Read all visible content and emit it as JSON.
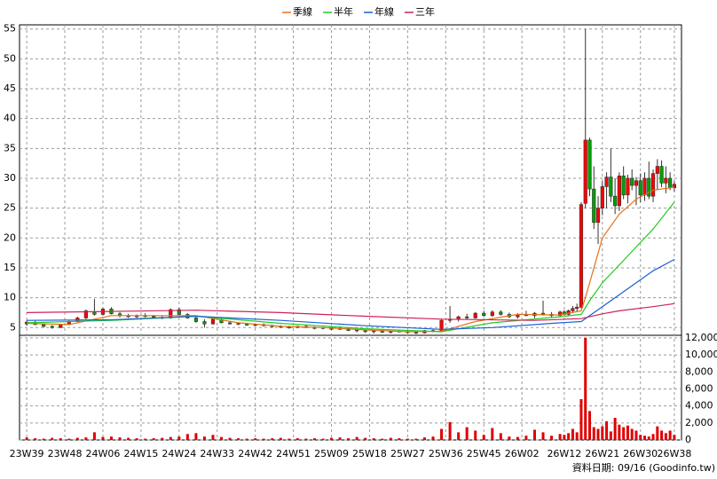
{
  "chart_data": [
    {
      "type": "candlestick",
      "xlim": [
        -1.7,
        154.7
      ],
      "ylim": [
        3.7,
        55.7
      ],
      "yticks": [
        5,
        10,
        15,
        20,
        25,
        30,
        35,
        40,
        45,
        50,
        55
      ],
      "grid": true,
      "up_color": "#ff0000",
      "down_color": "#00a000",
      "x": [
        0,
        2,
        4,
        6,
        8,
        10,
        12,
        14,
        16,
        18,
        20,
        22,
        24,
        26,
        28,
        30,
        32,
        34,
        36,
        38,
        40,
        42,
        44,
        46,
        48,
        50,
        52,
        54,
        56,
        58,
        60,
        62,
        64,
        66,
        68,
        70,
        72,
        74,
        76,
        78,
        80,
        82,
        84,
        86,
        88,
        90,
        92,
        94,
        96,
        98,
        100,
        102,
        104,
        106,
        108,
        110,
        112,
        114,
        116,
        118,
        120,
        122,
        124,
        126,
        127,
        128,
        129,
        130,
        131,
        132,
        133,
        134,
        135,
        136,
        137,
        138,
        139,
        140,
        141,
        142,
        143,
        144,
        145,
        146,
        147,
        148,
        149,
        150,
        151,
        152,
        153
      ],
      "open": [
        5.6,
        5.9,
        5.5,
        5.2,
        5.0,
        5.5,
        6.0,
        6.6,
        7.6,
        7.2,
        8.1,
        7.3,
        7.0,
        6.8,
        7.0,
        6.9,
        6.7,
        6.6,
        8.0,
        7.2,
        6.6,
        6.0,
        5.6,
        6.3,
        5.8,
        5.6,
        5.7,
        5.4,
        5.5,
        5.3,
        5.2,
        5.1,
        5.0,
        5.2,
        5.0,
        4.9,
        5.0,
        4.7,
        4.9,
        4.5,
        4.6,
        4.3,
        4.5,
        4.2,
        4.4,
        4.3,
        4.2,
        4.1,
        4.5,
        4.4,
        6.2,
        6.4,
        6.8,
        6.6,
        7.4,
        7.0,
        7.6,
        7.2,
        6.8,
        7.2,
        7.0,
        7.4,
        7.2,
        7.0,
        7.6,
        7.2,
        7.8,
        8.2,
        8.4,
        25.8,
        36.4,
        28.2,
        22.6,
        25.0,
        28.6,
        30.2,
        27.0,
        25.4,
        30.4,
        27.2,
        30.0,
        28.8,
        29.6,
        27.2,
        30.0,
        27.0,
        30.8,
        32.0,
        29.2,
        30.0,
        28.4
      ],
      "high": [
        6.2,
        6.1,
        5.7,
        5.4,
        5.6,
        6.2,
        6.8,
        8.0,
        9.8,
        8.3,
        8.4,
        7.6,
        7.3,
        7.2,
        7.4,
        7.1,
        7.0,
        8.2,
        8.3,
        7.4,
        6.8,
        6.4,
        6.6,
        6.5,
        6.0,
        5.9,
        5.8,
        5.6,
        5.7,
        5.5,
        5.4,
        5.3,
        5.3,
        5.4,
        5.2,
        5.1,
        5.2,
        5.0,
        5.0,
        4.8,
        4.7,
        4.6,
        4.6,
        4.5,
        4.6,
        4.5,
        4.4,
        4.6,
        4.8,
        6.5,
        8.6,
        7.0,
        7.3,
        7.6,
        7.8,
        7.9,
        7.9,
        7.5,
        7.4,
        7.8,
        7.6,
        9.5,
        7.6,
        7.8,
        7.9,
        8.0,
        8.6,
        9.0,
        26.0,
        55.0,
        36.8,
        32.0,
        27.0,
        29.5,
        31.0,
        35.0,
        30.0,
        31.0,
        32.0,
        30.6,
        31.5,
        30.2,
        30.8,
        31.0,
        32.8,
        31.5,
        33.2,
        33.0,
        32.0,
        31.0,
        29.5
      ],
      "low": [
        5.3,
        5.4,
        5.0,
        4.8,
        4.9,
        5.4,
        5.9,
        6.4,
        7.0,
        7.0,
        7.2,
        6.7,
        6.6,
        6.6,
        6.7,
        6.5,
        6.4,
        6.5,
        7.0,
        6.5,
        5.8,
        5.0,
        5.5,
        5.7,
        5.5,
        5.4,
        5.3,
        5.2,
        5.2,
        5.0,
        4.9,
        4.8,
        4.9,
        4.9,
        4.7,
        4.7,
        4.6,
        4.6,
        4.4,
        4.2,
        4.1,
        4.0,
        4.1,
        4.0,
        4.2,
        4.0,
        3.9,
        4.0,
        4.2,
        4.3,
        5.8,
        6.0,
        6.3,
        6.5,
        6.8,
        6.8,
        7.0,
        6.6,
        6.5,
        6.9,
        6.6,
        7.0,
        6.6,
        6.8,
        7.0,
        7.0,
        7.4,
        7.6,
        8.2,
        25.0,
        27.0,
        21.5,
        19.0,
        23.8,
        25.0,
        26.0,
        24.0,
        24.5,
        26.5,
        25.8,
        28.0,
        25.5,
        26.0,
        26.2,
        26.5,
        26.0,
        28.0,
        28.5,
        27.5,
        28.0,
        27.8
      ],
      "close": [
        5.9,
        5.5,
        5.2,
        5.0,
        5.5,
        6.0,
        6.6,
        7.8,
        7.2,
        8.1,
        7.3,
        7.0,
        6.8,
        7.0,
        6.9,
        6.7,
        6.6,
        8.0,
        7.2,
        6.6,
        6.0,
        5.6,
        6.4,
        5.8,
        5.6,
        5.7,
        5.4,
        5.5,
        5.3,
        5.2,
        5.1,
        5.0,
        5.2,
        5.0,
        4.9,
        5.0,
        4.7,
        4.9,
        4.5,
        4.6,
        4.3,
        4.5,
        4.2,
        4.4,
        4.3,
        4.2,
        4.1,
        4.5,
        4.4,
        6.2,
        6.4,
        6.8,
        6.6,
        7.4,
        7.0,
        7.6,
        7.2,
        6.8,
        7.2,
        7.0,
        7.4,
        7.2,
        7.0,
        7.6,
        7.2,
        7.8,
        8.2,
        8.4,
        25.6,
        36.4,
        28.2,
        22.6,
        25.0,
        28.6,
        30.2,
        27.0,
        25.4,
        30.4,
        27.2,
        30.0,
        28.8,
        29.6,
        27.2,
        30.0,
        27.0,
        30.8,
        32.0,
        29.2,
        30.0,
        28.4,
        29.0
      ],
      "series": [
        {
          "name": "季線",
          "color": "#e8701a",
          "x": [
            0,
            10,
            20,
            30,
            40,
            50,
            60,
            70,
            80,
            90,
            98,
            106,
            116,
            126,
            131,
            132,
            134,
            136,
            140,
            144,
            148,
            153
          ],
          "values": [
            5.7,
            5.5,
            7.0,
            7.0,
            7.0,
            5.8,
            5.2,
            5.0,
            4.6,
            4.3,
            4.4,
            6.0,
            7.2,
            7.1,
            7.8,
            10,
            15,
            20,
            24,
            26.5,
            28,
            28.5
          ]
        },
        {
          "name": "半年",
          "color": "#22cc22",
          "x": [
            0,
            20,
            40,
            60,
            80,
            98,
            110,
            126,
            131,
            133,
            136,
            140,
            144,
            148,
            153
          ],
          "values": [
            5.8,
            6.2,
            6.9,
            5.7,
            4.8,
            4.3,
            5.8,
            6.8,
            7.2,
            9.5,
            12.5,
            15.5,
            18.5,
            21.5,
            26.0
          ]
        },
        {
          "name": "年線",
          "color": "#1a5fd6",
          "x": [
            0,
            20,
            40,
            60,
            80,
            98,
            110,
            126,
            131,
            136,
            140,
            144,
            148,
            153
          ],
          "values": [
            6.2,
            6.3,
            6.9,
            6.2,
            5.3,
            4.7,
            5.0,
            5.8,
            6.0,
            8.5,
            10.5,
            12.5,
            14.5,
            16.4
          ]
        },
        {
          "name": "三年",
          "color": "#d0205a",
          "x": [
            0,
            20,
            40,
            60,
            80,
            98,
            120,
            131,
            136,
            140,
            148,
            153
          ],
          "values": [
            7.5,
            7.7,
            7.9,
            7.5,
            6.9,
            6.4,
            6.2,
            6.5,
            7.3,
            7.8,
            8.5,
            9.0
          ]
        }
      ]
    },
    {
      "type": "bar",
      "color": "#e00000",
      "xlim": [
        -1.7,
        154.7
      ],
      "ylim": [
        0,
        12300
      ],
      "yticks": [
        0,
        {
          "value": 2000,
          "label": "2,000"
        },
        {
          "value": 4000,
          "label": "4,000"
        },
        {
          "value": 6000,
          "label": "6,000"
        },
        {
          "value": 8000,
          "label": "8,000"
        },
        {
          "value": 10000,
          "label": "10,000"
        },
        {
          "value": 12000,
          "label": "12,000"
        }
      ],
      "xticks": [
        {
          "value": 0,
          "label": "23W39"
        },
        {
          "value": 9,
          "label": "23W48"
        },
        {
          "value": 18,
          "label": "24W06"
        },
        {
          "value": 27,
          "label": "24W15"
        },
        {
          "value": 36,
          "label": "24W24"
        },
        {
          "value": 45,
          "label": "24W33"
        },
        {
          "value": 54,
          "label": "24W42"
        },
        {
          "value": 63,
          "label": "24W51"
        },
        {
          "value": 72,
          "label": "25W09"
        },
        {
          "value": 81,
          "label": "25W18"
        },
        {
          "value": 90,
          "label": "25W27"
        },
        {
          "value": 99,
          "label": "25W36"
        },
        {
          "value": 108,
          "label": "25W45"
        },
        {
          "value": 117,
          "label": "26W02"
        },
        {
          "value": 127,
          "label": "26W12"
        },
        {
          "value": 136,
          "label": "26W21"
        },
        {
          "value": 145,
          "label": "26W30"
        },
        {
          "value": 153,
          "label": "26W38"
        }
      ],
      "grid": true,
      "x": [
        0,
        2,
        4,
        6,
        8,
        10,
        12,
        14,
        16,
        18,
        20,
        22,
        24,
        26,
        28,
        30,
        32,
        34,
        36,
        38,
        40,
        42,
        44,
        46,
        48,
        50,
        52,
        54,
        56,
        58,
        60,
        62,
        64,
        66,
        68,
        70,
        72,
        74,
        76,
        78,
        80,
        82,
        84,
        86,
        88,
        90,
        92,
        94,
        96,
        98,
        100,
        102,
        104,
        106,
        108,
        110,
        112,
        114,
        116,
        118,
        120,
        122,
        124,
        126,
        127,
        128,
        129,
        130,
        131,
        132,
        133,
        134,
        135,
        136,
        137,
        138,
        139,
        140,
        141,
        142,
        143,
        144,
        145,
        146,
        147,
        148,
        149,
        150,
        151,
        152,
        153
      ],
      "values": [
        300,
        200,
        150,
        250,
        200,
        150,
        250,
        300,
        900,
        350,
        400,
        300,
        250,
        200,
        150,
        200,
        250,
        350,
        400,
        700,
        800,
        400,
        600,
        350,
        250,
        200,
        150,
        200,
        150,
        200,
        250,
        150,
        200,
        150,
        200,
        150,
        250,
        300,
        200,
        350,
        250,
        200,
        150,
        250,
        200,
        150,
        150,
        300,
        400,
        1300,
        2100,
        900,
        1500,
        1100,
        600,
        1400,
        800,
        400,
        350,
        500,
        1200,
        900,
        500,
        700,
        600,
        800,
        1300,
        900,
        4800,
        12000,
        3400,
        1500,
        1300,
        1600,
        2200,
        1000,
        2600,
        1800,
        1500,
        1700,
        1300,
        1100,
        600,
        500,
        400,
        700,
        1600,
        1100,
        800,
        1100,
        600
      ],
      "source": "資料日期: 09/16 (Goodinfo.tw)"
    }
  ]
}
